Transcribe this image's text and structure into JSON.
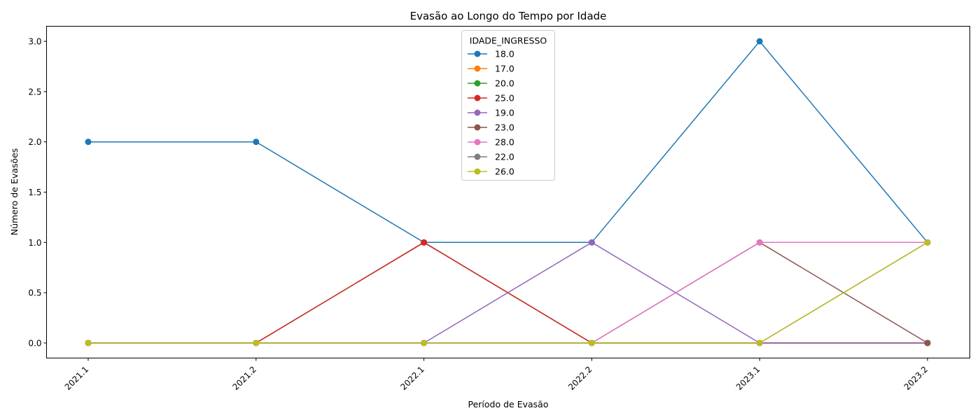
{
  "chart_data": {
    "type": "line",
    "title": "Evasão ao Longo do Tempo por Idade",
    "xlabel": "Período de Evasão",
    "ylabel": "Número de Evasões",
    "categories": [
      "2021.1",
      "2021.2",
      "2022.1",
      "2022.2",
      "2023.1",
      "2023.2"
    ],
    "ylim": [
      -0.15,
      3.15
    ],
    "yticks": [
      0.0,
      0.5,
      1.0,
      1.5,
      2.0,
      2.5,
      3.0
    ],
    "ytick_labels": [
      "0.0",
      "0.5",
      "1.0",
      "1.5",
      "2.0",
      "2.5",
      "3.0"
    ],
    "grid": false,
    "legend": {
      "title": "IDADE_INGRESSO",
      "placement": "top-center"
    },
    "series": [
      {
        "name": "18.0",
        "color": "#1f77b4",
        "values": [
          2,
          2,
          1,
          1,
          3,
          1
        ]
      },
      {
        "name": "17.0",
        "color": "#ff7f0e",
        "values": [
          0,
          0,
          1,
          0,
          0,
          0
        ]
      },
      {
        "name": "20.0",
        "color": "#2ca02c",
        "values": [
          0,
          0,
          1,
          0,
          0,
          0
        ]
      },
      {
        "name": "25.0",
        "color": "#d62728",
        "values": [
          0,
          0,
          1,
          0,
          0,
          0
        ]
      },
      {
        "name": "19.0",
        "color": "#9467bd",
        "values": [
          0,
          0,
          0,
          1,
          0,
          0
        ]
      },
      {
        "name": "23.0",
        "color": "#8c564b",
        "values": [
          0,
          0,
          0,
          0,
          1,
          0
        ]
      },
      {
        "name": "28.0",
        "color": "#e377c2",
        "values": [
          0,
          0,
          0,
          0,
          1,
          1
        ]
      },
      {
        "name": "22.0",
        "color": "#7f7f7f",
        "values": [
          0,
          0,
          0,
          0,
          0,
          1
        ]
      },
      {
        "name": "26.0",
        "color": "#bcbd22",
        "values": [
          0,
          0,
          0,
          0,
          0,
          1
        ]
      }
    ]
  }
}
